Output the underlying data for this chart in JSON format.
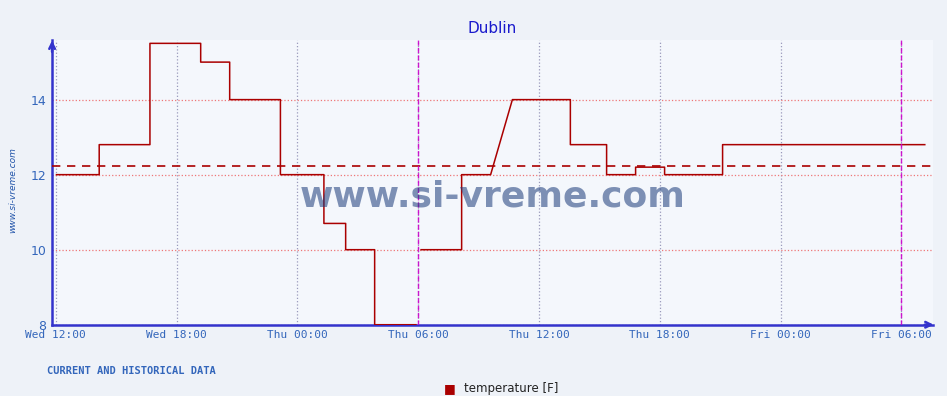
{
  "title": "Dublin",
  "ylim": [
    8,
    15.6
  ],
  "yticks": [
    8,
    10,
    12,
    14
  ],
  "background_color": "#eef2f8",
  "plot_bg_color": "#f4f7fc",
  "line_color": "#aa0000",
  "avg_value": 12.22,
  "title_color": "#1a1acc",
  "axis_color": "#3333cc",
  "tick_color": "#3366bb",
  "bottom_text": "CURRENT AND HISTORICAL DATA",
  "legend_label": "temperature [F]",
  "legend_color": "#aa0000",
  "x_labels": [
    "Wed 12:00",
    "Wed 18:00",
    "Thu 00:00",
    "Thu 06:00",
    "Thu 12:00",
    "Thu 18:00",
    "Fri 00:00",
    "Fri 06:00"
  ],
  "x_tick_pos": [
    0.0,
    0.1667,
    0.3333,
    0.5,
    0.6667,
    0.8333,
    1.0,
    1.1667
  ],
  "watermark_side": "www.si-vreme.com",
  "watermark_center": "www.si-vreme.com",
  "vline_magenta": [
    0.5,
    1.1667
  ],
  "figsize": [
    9.47,
    3.96
  ],
  "dpi": 100,
  "xlim": [
    -0.005,
    1.21
  ],
  "temp_x": [
    0.0,
    0.06,
    0.06,
    0.13,
    0.13,
    0.2,
    0.2,
    0.24,
    0.24,
    0.31,
    0.31,
    0.37,
    0.37,
    0.4,
    0.4,
    0.44,
    0.44,
    0.498,
    0.503,
    0.503,
    0.56,
    0.56,
    0.6,
    0.6,
    0.63,
    0.63,
    0.71,
    0.71,
    0.76,
    0.76,
    0.8,
    0.8,
    0.84,
    0.84,
    0.92,
    0.92,
    0.96,
    1.2
  ],
  "temp_y": [
    12.0,
    12.0,
    12.8,
    12.8,
    15.5,
    15.5,
    15.0,
    15.0,
    14.0,
    14.0,
    12.0,
    12.0,
    10.7,
    10.7,
    10.0,
    10.0,
    8.0,
    8.0,
    null,
    10.0,
    10.0,
    12.0,
    12.0,
    12.0,
    14.0,
    14.0,
    14.0,
    12.8,
    12.8,
    12.0,
    12.0,
    12.2,
    12.2,
    12.0,
    12.0,
    12.8,
    12.8,
    12.8
  ]
}
